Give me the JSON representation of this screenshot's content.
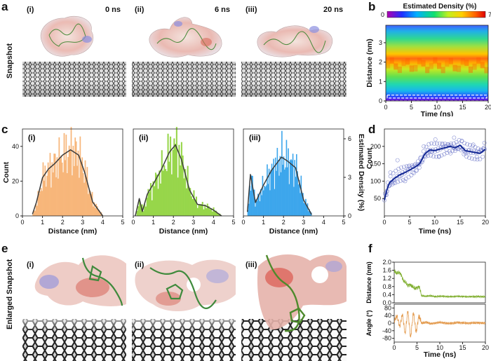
{
  "panel_labels": [
    "a",
    "b",
    "c",
    "d",
    "e",
    "f"
  ],
  "panel_a": {
    "row_label": "Snapshot",
    "frames": [
      {
        "label": "(i)",
        "time": "0 ns"
      },
      {
        "label": "(ii)",
        "time": "6 ns"
      },
      {
        "label": "(iii)",
        "time": "20 ns"
      }
    ]
  },
  "panel_e": {
    "row_label": "Enlarged Snapshot",
    "frames": [
      {
        "label": "(i)"
      },
      {
        "label": "(ii)"
      },
      {
        "label": "(iii)"
      }
    ]
  },
  "panel_c_labels": [
    "(i)",
    "(ii)",
    "(iii)"
  ],
  "colors": {
    "hist_i": "#f7b67a",
    "hist_ii": "#97d64a",
    "hist_iii": "#3da6ec",
    "fit_line": "#3c3c3c",
    "panel_d_line": "#0c2290",
    "panel_d_points": "#6a74c8",
    "panel_f_top": "#7fae2e",
    "panel_f_bottom": "#e39a4d"
  },
  "chart_data": [
    {
      "id": "b",
      "type": "heatmap",
      "title": "Estimated Density (%)",
      "colorbar_range": [
        0,
        7
      ],
      "colorbar_ticks": [
        "0",
        "7"
      ],
      "xlabel": "Time (ns)",
      "ylabel": "Distance (nm)",
      "xlim": [
        0,
        20
      ],
      "ylim": [
        0,
        3.9
      ],
      "xticks": [
        "0",
        "5",
        "10",
        "15",
        "20"
      ],
      "yticks": [
        "0",
        "1",
        "2",
        "3"
      ],
      "dashed_boxes": [
        [
          0.0,
          0.55
        ],
        [
          0.3,
          0.15
        ]
      ]
    },
    {
      "id": "c-i",
      "type": "bar",
      "series_name": "(i)",
      "xlabel": "Distance (nm)",
      "ylabel": "Count",
      "xlim": [
        0,
        5
      ],
      "ylim": [
        0,
        50
      ],
      "xticks": [
        "0",
        "1",
        "2",
        "3",
        "4",
        "5"
      ],
      "yticks": [
        "0",
        "20",
        "40"
      ],
      "fit_x": [
        0.5,
        0.7,
        1.0,
        1.3,
        1.6,
        2.0,
        2.4,
        2.8,
        3.1,
        3.5,
        4.0
      ],
      "fit_y": [
        1,
        8,
        22,
        27,
        30,
        35,
        38,
        35,
        25,
        8,
        0
      ]
    },
    {
      "id": "c-ii",
      "type": "bar",
      "series_name": "(ii)",
      "xlabel": "Distance (nm)",
      "xlim": [
        0,
        5
      ],
      "xticks": [
        "0",
        "1",
        "2",
        "3",
        "4",
        "5"
      ],
      "fit_x": [
        0.1,
        0.3,
        0.45,
        0.7,
        1.0,
        1.4,
        1.8,
        2.1,
        2.4,
        2.8,
        3.2,
        3.6,
        4.0,
        4.4
      ],
      "fit_y": [
        0,
        1.2,
        0.3,
        1.5,
        2.2,
        3.2,
        4.4,
        4.9,
        3.9,
        1.8,
        0.8,
        0.7,
        0.4,
        0
      ]
    },
    {
      "id": "c-iii",
      "type": "bar",
      "series_name": "(iii)",
      "xlabel": "Distance (nm)",
      "ylabel_right": "Estimated Density (%)",
      "xlim": [
        0,
        5
      ],
      "ylim": [
        0,
        6
      ],
      "xticks": [
        "0",
        "1",
        "2",
        "3",
        "4",
        "5"
      ],
      "yticks": [
        "0",
        "3",
        "6"
      ],
      "fit_x": [
        0.2,
        0.35,
        0.6,
        1.0,
        1.4,
        1.7,
        1.9,
        2.2,
        2.6,
        3.0,
        3.4
      ],
      "fit_y": [
        0.3,
        3.1,
        1.0,
        2.3,
        3.4,
        4.0,
        4.4,
        4.1,
        3.6,
        1.2,
        0.1
      ]
    },
    {
      "id": "d",
      "type": "scatter",
      "xlabel": "Time (ns)",
      "ylabel": "Count",
      "xlim": [
        0,
        20
      ],
      "ylim": [
        0,
        250
      ],
      "xticks": [
        "0",
        "5",
        "10",
        "15",
        "20"
      ],
      "yticks": [
        "50",
        "100",
        "150",
        "200"
      ],
      "line_x": [
        0,
        0.5,
        1,
        2,
        3,
        4,
        5,
        6,
        7,
        8,
        9,
        10,
        11,
        12,
        13,
        14,
        15,
        16,
        17,
        18,
        19,
        20
      ],
      "line_y": [
        45,
        75,
        95,
        108,
        118,
        124,
        132,
        140,
        150,
        178,
        190,
        188,
        192,
        196,
        200,
        196,
        203,
        188,
        185,
        182,
        180,
        192
      ],
      "scatter_x": [
        0.5,
        1.2,
        1.8,
        2.6,
        3.2,
        4.1,
        4.8,
        5.6,
        6.3,
        7.1,
        7.8,
        8.6,
        9.3,
        10.1,
        10.8,
        11.5,
        12.3,
        13.1,
        13.8,
        14.5,
        15.3,
        16.1,
        16.8,
        17.6,
        18.3,
        19.1,
        19.8
      ],
      "scatter_y": [
        70,
        125,
        95,
        160,
        115,
        100,
        142,
        125,
        130,
        165,
        200,
        190,
        185,
        220,
        170,
        205,
        190,
        180,
        225,
        205,
        215,
        180,
        190,
        205,
        170,
        190,
        210
      ]
    },
    {
      "id": "f-top",
      "type": "line",
      "ylabel": "Distance (nm)",
      "xlim": [
        0,
        20
      ],
      "ylim": [
        0,
        2.0
      ],
      "yticks": [
        "0.0",
        "0.4",
        "0.8",
        "1.2",
        "1.6",
        "2.0"
      ],
      "x": [
        0,
        0.5,
        1,
        1.5,
        2,
        2.5,
        3,
        3.5,
        4,
        4.5,
        5,
        5.5,
        6,
        7,
        8,
        9,
        10,
        12,
        14,
        16,
        18,
        20
      ],
      "y": [
        1.6,
        1.45,
        1.5,
        1.4,
        1.1,
        1.0,
        0.85,
        0.9,
        0.8,
        0.7,
        0.75,
        0.8,
        0.35,
        0.32,
        0.35,
        0.3,
        0.33,
        0.3,
        0.32,
        0.3,
        0.31,
        0.3
      ]
    },
    {
      "id": "f-bottom",
      "type": "line",
      "xlabel": "Time (ns)",
      "ylabel": "Angle (°)",
      "xlim": [
        0,
        20
      ],
      "ylim": [
        -100,
        100
      ],
      "xticks": [
        "0",
        "5",
        "10",
        "15",
        "20"
      ],
      "yticks": [
        "-80",
        "-40",
        "0",
        "40",
        "80"
      ],
      "x": [
        0,
        0.6,
        1.2,
        1.8,
        2.4,
        3.0,
        3.6,
        4.2,
        4.8,
        5.4,
        6,
        7,
        8,
        10,
        12,
        14,
        16,
        18,
        20
      ],
      "y": [
        10,
        40,
        -20,
        50,
        -60,
        70,
        -80,
        60,
        -50,
        40,
        0,
        5,
        -3,
        4,
        -2,
        3,
        0,
        2,
        0
      ]
    }
  ]
}
